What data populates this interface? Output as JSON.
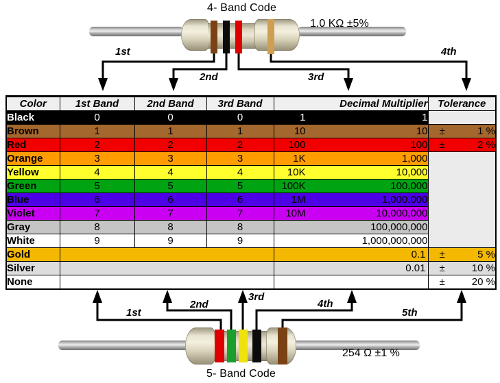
{
  "top_diagram": {
    "title": "4- Band Code",
    "value": "1.0 KΩ  ±5%",
    "arrow_labels": [
      "1st",
      "2nd",
      "3rd",
      "4th"
    ],
    "band_colors": [
      "brown",
      "black",
      "red",
      "gold"
    ]
  },
  "bottom_diagram": {
    "title": "5- Band Code",
    "value": "254 Ω  ±1 %",
    "arrow_labels": [
      "1st",
      "2nd",
      "3rd",
      "4th",
      "5th"
    ],
    "band_colors": [
      "red",
      "green",
      "yellow",
      "black",
      "brown"
    ]
  },
  "band_hex": {
    "brown": "#7A4214",
    "black": "#0C0C0C",
    "red": "#DE0000",
    "gold": "#CE9E52",
    "green": "#1C9E2C",
    "yellow": "#F0E20C"
  },
  "table": {
    "headers": [
      "Color",
      "1st Band",
      "2nd Band",
      "3rd Band",
      "Decimal Multiplier",
      "Tolerance"
    ],
    "header_bg": "#EFEFEF",
    "empty_tolerance_bg": "#EBEBEB",
    "rows": [
      {
        "name": "Black",
        "bg": "#000000",
        "fg": "#FFFFFF",
        "bands": [
          "0",
          "0",
          "0"
        ],
        "mult_short": "1",
        "mult_full": "1",
        "tol_sign": "",
        "tol_value": "",
        "tol_bg": "#EBEBEB"
      },
      {
        "name": "Brown",
        "bg": "#A4672E",
        "fg": "#000000",
        "bands": [
          "1",
          "1",
          "1"
        ],
        "mult_short": "10",
        "mult_full": "10",
        "tol_sign": "±",
        "tol_value": "1 %",
        "tol_bg": "row"
      },
      {
        "name": "Red",
        "bg": "#F20000",
        "fg": "#000000",
        "bands": [
          "2",
          "2",
          "2"
        ],
        "mult_short": "100",
        "mult_full": "100",
        "tol_sign": "±",
        "tol_value": "2 %",
        "tol_bg": "row"
      },
      {
        "name": "Orange",
        "bg": "#FF9C00",
        "fg": "#000000",
        "bands": [
          "3",
          "3",
          "3"
        ],
        "mult_short": "1K",
        "mult_full": "1,000",
        "tol_sign": "",
        "tol_value": "",
        "tol_bg": "#EBEBEB",
        "tol_span": 7
      },
      {
        "name": "Yellow",
        "bg": "#FFFF2E",
        "fg": "#000000",
        "bands": [
          "4",
          "4",
          "4"
        ],
        "mult_short": "10K",
        "mult_full": "10,000",
        "tol_skip": true
      },
      {
        "name": "Green",
        "bg": "#00A413",
        "fg": "#000000",
        "bands": [
          "5",
          "5",
          "5"
        ],
        "mult_short": "100K",
        "mult_full": "100,000",
        "tol_skip": true
      },
      {
        "name": "Blue",
        "bg": "#4D00E6",
        "fg": "#000000",
        "bands": [
          "6",
          "6",
          "6"
        ],
        "mult_short": "1M",
        "mult_full": "1,000,000",
        "tol_skip": true
      },
      {
        "name": "Violet",
        "bg": "#C900F2",
        "fg": "#000000",
        "bands": [
          "7",
          "7",
          "7"
        ],
        "mult_short": "10M",
        "mult_full": "10,000,000",
        "tol_skip": true
      },
      {
        "name": "Gray",
        "bg": "#C5C5C5",
        "fg": "#000000",
        "bands": [
          "8",
          "8",
          "8"
        ],
        "mult_short": "",
        "mult_full": "100,000,000",
        "tol_skip": true
      },
      {
        "name": "White",
        "bg": "#FFFFFF",
        "fg": "#000000",
        "bands": [
          "9",
          "9",
          "9"
        ],
        "mult_short": "",
        "mult_full": "1,000,000,000",
        "tol_skip": true
      },
      {
        "name": "Gold",
        "bg": "#F5B800",
        "fg": "#000000",
        "bands": null,
        "mult_short": "",
        "mult_full": "0.1",
        "mult_flush": true,
        "tol_sign": "±",
        "tol_value": "5 %",
        "tol_bg": "row"
      },
      {
        "name": "Silver",
        "bg": "#DDDDDD",
        "fg": "#000000",
        "bands": null,
        "mult_short": "",
        "mult_full": "0.01",
        "mult_flush": true,
        "tol_sign": "±",
        "tol_value": "10 %",
        "tol_bg": "row"
      },
      {
        "name": "None",
        "bg": "#FFFFFF",
        "fg": "#000000",
        "bands": null,
        "mult_short": "",
        "mult_full": "",
        "tol_sign": "±",
        "tol_value": "20 %",
        "tol_bg": "row"
      }
    ]
  }
}
